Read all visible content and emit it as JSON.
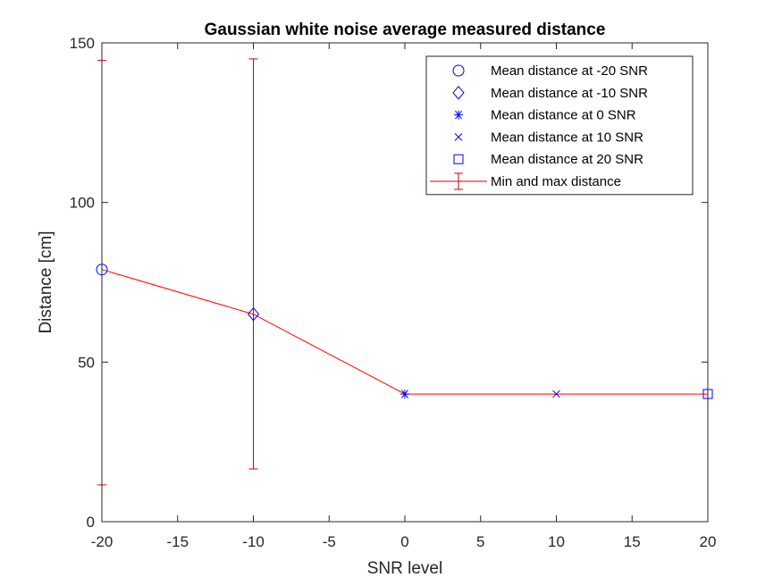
{
  "chart_data": {
    "type": "line",
    "title": "Gaussian white noise average measured distance",
    "xlabel": "SNR level",
    "ylabel": "Distance [cm]",
    "xlim": [
      -20,
      20
    ],
    "ylim": [
      0,
      150
    ],
    "xticks": [
      -20,
      -15,
      -10,
      -5,
      0,
      5,
      10,
      15,
      20
    ],
    "yticks": [
      0,
      50,
      100,
      150
    ],
    "grid": false,
    "legend_position": "top-right",
    "x": [
      -20,
      -10,
      0,
      10,
      20
    ],
    "mean": [
      79,
      65,
      40,
      40,
      40
    ],
    "min": [
      11.5,
      16.5,
      40,
      40,
      40
    ],
    "max": [
      144.5,
      145,
      40,
      40,
      40
    ],
    "markers": [
      "circle",
      "diamond",
      "asterisk",
      "x",
      "square"
    ],
    "colors": {
      "markers": "#0000ff",
      "line": "#ff0000",
      "errorbar": "#cc0000",
      "axes": "#262626"
    },
    "legend": [
      {
        "label": "Mean distance at -20 SNR",
        "marker": "circle"
      },
      {
        "label": "Mean distance at -10 SNR",
        "marker": "diamond"
      },
      {
        "label": "Mean distance at 0 SNR",
        "marker": "asterisk"
      },
      {
        "label": "Mean distance at 10 SNR",
        "marker": "x"
      },
      {
        "label": "Mean distance at 20 SNR",
        "marker": "square"
      },
      {
        "label": "Min and max distance",
        "marker": "errorbar"
      }
    ]
  }
}
